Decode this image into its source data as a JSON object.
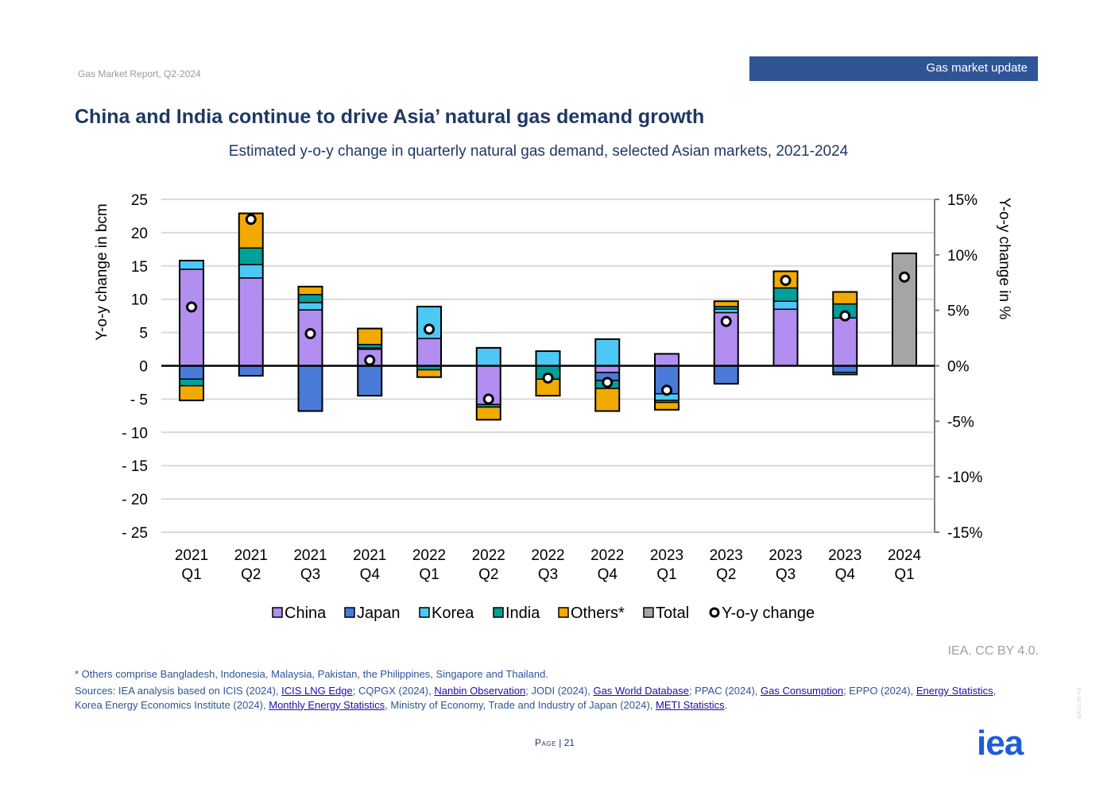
{
  "header": {
    "report_label": "Gas Market Report, Q2-2024",
    "section_tab": "Gas market update"
  },
  "title": "China and India continue to drive Asia’ natural gas demand growth",
  "subtitle": "Estimated y-o-y change in quarterly natural gas demand, selected Asian markets, 2021-2024",
  "chart_data": {
    "type": "bar",
    "stacked": true,
    "categories": [
      [
        "2021",
        "Q1"
      ],
      [
        "2021",
        "Q2"
      ],
      [
        "2021",
        "Q3"
      ],
      [
        "2021",
        "Q4"
      ],
      [
        "2022",
        "Q1"
      ],
      [
        "2022",
        "Q2"
      ],
      [
        "2022",
        "Q3"
      ],
      [
        "2022",
        "Q4"
      ],
      [
        "2023",
        "Q1"
      ],
      [
        "2023",
        "Q2"
      ],
      [
        "2023",
        "Q3"
      ],
      [
        "2023",
        "Q4"
      ],
      [
        "2024",
        "Q1"
      ]
    ],
    "ylabel": "Y-o-y change in bcm",
    "y2label": "Y-o-y change in %",
    "ylim": [
      -25,
      25
    ],
    "y2lim": [
      -15,
      15
    ],
    "yticks": [
      25,
      20,
      15,
      10,
      5,
      0,
      -5,
      -10,
      -15,
      -20,
      -25
    ],
    "ytick_labels": [
      "25",
      "20",
      "15",
      "10",
      "5",
      "0",
      "- 5",
      "- 10",
      "- 15",
      "- 20",
      "- 25"
    ],
    "y2ticks": [
      15,
      10,
      5,
      0,
      -5,
      -10,
      -15
    ],
    "y2tick_labels": [
      "15%",
      "10%",
      "5%",
      "0%",
      "-5%",
      "-10%",
      "-15%"
    ],
    "grid": true,
    "legend_position": "bottom",
    "series": [
      {
        "name": "China",
        "color": "#b18ef0",
        "values": [
          14.5,
          13.2,
          8.4,
          2.5,
          4.1,
          -5.8,
          0.0,
          -1.0,
          1.8,
          8.0,
          8.5,
          7.2,
          0
        ]
      },
      {
        "name": "Japan",
        "color": "#4a7bd8",
        "values": [
          -2.0,
          -1.5,
          -6.8,
          -4.5,
          0.0,
          0.0,
          0.0,
          -1.2,
          -4.2,
          -2.7,
          0.0,
          -1.0,
          0
        ]
      },
      {
        "name": "Korea",
        "color": "#4dc8f5",
        "values": [
          1.3,
          2.0,
          1.1,
          0.2,
          4.8,
          2.7,
          2.2,
          4.0,
          -1.0,
          0.5,
          1.2,
          -0.3,
          0
        ]
      },
      {
        "name": "India",
        "color": "#00a19a",
        "values": [
          -1.0,
          2.5,
          1.2,
          0.5,
          -0.6,
          -0.4,
          -2.0,
          -1.2,
          -0.3,
          0.4,
          2.0,
          2.1,
          0
        ]
      },
      {
        "name": "Others*",
        "color": "#f2a900",
        "values": [
          -2.2,
          5.2,
          1.2,
          2.4,
          -1.1,
          -1.9,
          -2.5,
          -3.4,
          -1.1,
          0.8,
          2.5,
          1.8,
          0
        ]
      },
      {
        "name": "Total",
        "color": "#a5a5a5",
        "values": [
          0,
          0,
          0,
          0,
          0,
          0,
          0,
          0,
          0,
          0,
          0,
          0,
          16.9
        ]
      }
    ],
    "yoy_change": {
      "name": "Y-o-y change",
      "values": [
        5.3,
        13.2,
        2.9,
        0.5,
        3.3,
        -3.0,
        -1.1,
        -1.5,
        -2.2,
        4.0,
        7.7,
        4.5,
        8.0
      ]
    },
    "legend": [
      "China",
      "Japan",
      "Korea",
      "India",
      "Others*",
      "Total",
      "Y-o-y change"
    ]
  },
  "credit": "IEA. CC BY 4.0.",
  "footnote": "* Others comprise Bangladesh, Indonesia, Malaysia, Pakistan, the Philippines, Singapore and Thailand.",
  "sources": {
    "t1": "Sources: IEA analysis based on ICIS (2024), ",
    "l1": "ICIS LNG Edge",
    "t2": "; CQPGX (2024), ",
    "l2": "Nanbin Observation",
    "t3": "; JODI (2024), ",
    "l3": "Gas World Database",
    "t4": "; PPAC (2024), ",
    "l4": "Gas Consumption",
    "t5": "; EPPO (2024), ",
    "l5": "Energy Statistics",
    "t6": ", Korea Energy Economics Institute (2024), ",
    "l6": "Monthly Energy Statistics",
    "t7": ", Ministry of Economy, Trade and Industry of Japan (2024), ",
    "l7": "METI Statistics",
    "t8": "."
  },
  "page": {
    "label": "Page",
    "sep": " | ",
    "number": "21"
  },
  "logo_text": "iea",
  "vertical_note": "IEA CC BY 4.0"
}
